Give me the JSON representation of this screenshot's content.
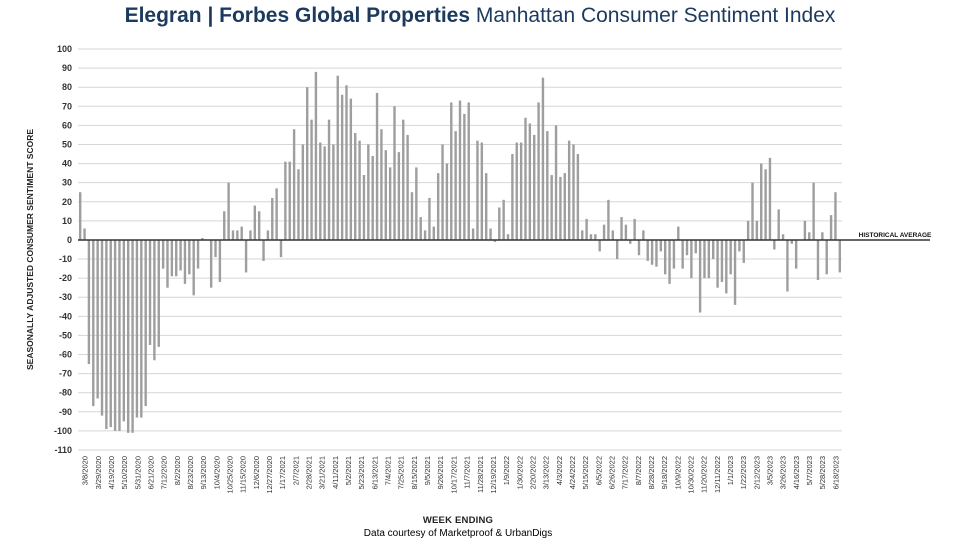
{
  "title": {
    "brand": "Elegran | Forbes Global Properties",
    "rest": " Manhattan Consumer Sentiment Index"
  },
  "credit": "Data courtesy of Marketproof & UrbanDigs",
  "colors": {
    "bar": "#9e9e9e",
    "grid": "#d6d6d6",
    "zero_line": "#333333",
    "title": "#1c3a5e"
  },
  "chart_data": {
    "type": "bar",
    "title": "Elegran | Forbes Global Properties Manhattan Consumer Sentiment Index",
    "xlabel": "WEEK ENDING",
    "ylabel": "SEASONALLY ADJUSTED CONSUMER SENTIMENT SCORE",
    "ylim": [
      -110,
      100
    ],
    "yticks": [
      100,
      90,
      80,
      70,
      60,
      50,
      40,
      30,
      20,
      10,
      0,
      -10,
      -20,
      -30,
      -40,
      -50,
      -60,
      -70,
      -80,
      -90,
      -100,
      -110
    ],
    "grid": true,
    "reference_line": {
      "value": 0,
      "label": "HISTORICAL AVERAGE"
    },
    "tick_labels": [
      "3/8/2020",
      "3/29/2020",
      "4/19/2020",
      "5/10/2020",
      "5/31/2020",
      "6/21/2020",
      "7/12/2020",
      "8/2/2020",
      "8/23/2020",
      "9/13/2020",
      "10/4/2020",
      "10/25/2020",
      "11/15/2020",
      "12/6/2020",
      "12/27/2020",
      "1/17/2021",
      "2/7/2021",
      "2/28/2021",
      "3/21/2021",
      "4/11/2021",
      "5/2/2021",
      "5/23/2021",
      "6/13/2021",
      "7/4/2021",
      "7/25/2021",
      "8/15/2021",
      "9/5/2021",
      "9/26/2021",
      "10/17/2021",
      "11/7/2021",
      "11/28/2021",
      "12/19/2021",
      "1/9/2022",
      "1/30/2022",
      "2/20/2022",
      "3/13/2022",
      "4/3/2022",
      "4/24/2022",
      "5/15/2022",
      "6/5/2022",
      "6/26/2022",
      "7/17/2022",
      "8/7/2022",
      "8/28/2022",
      "9/18/2022",
      "10/9/2022",
      "10/30/2022",
      "11/20/2022",
      "12/11/2022",
      "1/1/2023",
      "1/22/2023",
      "2/12/2023",
      "3/5/2023",
      "3/26/2023",
      "4/16/2023",
      "5/7/2023",
      "5/28/2023",
      "6/18/2023"
    ],
    "values": [
      25,
      6,
      -65,
      -87,
      -83,
      -92,
      -99,
      -98,
      -100,
      -100,
      -95,
      -101,
      -101,
      -93,
      -93,
      -87,
      -55,
      -63,
      -56,
      -15,
      -25,
      -19,
      -19,
      -16,
      -23,
      -18,
      -29,
      -15,
      1,
      0,
      -25,
      -9,
      -22,
      15,
      30,
      5,
      5,
      7,
      -17,
      5,
      18,
      15,
      -11,
      5,
      22,
      27,
      -9,
      41,
      41,
      58,
      37,
      50,
      80,
      63,
      88,
      51,
      49,
      63,
      50,
      86,
      76,
      81,
      74,
      56,
      52,
      34,
      50,
      44,
      77,
      58,
      47,
      38,
      70,
      46,
      63,
      55,
      25,
      38,
      12,
      5,
      22,
      7,
      35,
      50,
      40,
      72,
      57,
      73,
      66,
      72,
      6,
      52,
      51,
      35,
      6,
      -1,
      17,
      21,
      3,
      45,
      51,
      51,
      64,
      61,
      55,
      72,
      85,
      57,
      34,
      60,
      33,
      35,
      52,
      50,
      45,
      5,
      11,
      3,
      3,
      -6,
      8,
      21,
      5,
      -10,
      12,
      8,
      -2,
      11,
      -8,
      5,
      -11,
      -13,
      -14,
      -6,
      -18,
      -23,
      -15,
      7,
      -15,
      -8,
      -20,
      -7,
      -38,
      -20,
      -20,
      -10,
      -25,
      -22,
      -28,
      -18,
      -34,
      -6,
      -12,
      10,
      30,
      10,
      40,
      37,
      43,
      -5,
      16,
      3,
      -27,
      -2,
      -15,
      0,
      10,
      4,
      30,
      -21,
      4,
      -18,
      13,
      25,
      -17
    ]
  }
}
